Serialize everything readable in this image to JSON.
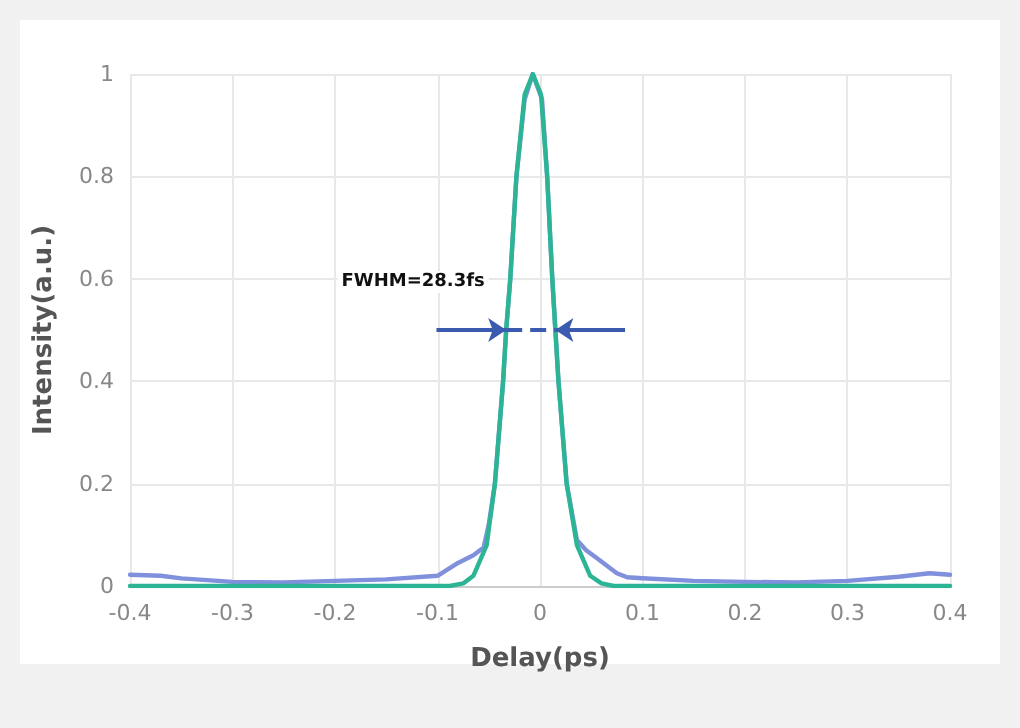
{
  "chart_data": {
    "type": "line",
    "xlabel": "Delay(ps)",
    "ylabel": "Intensity(a.u.)",
    "xlim": [
      -0.4,
      0.4
    ],
    "xticks": [
      -0.4,
      -0.3,
      -0.2,
      -0.1,
      0,
      0.1,
      0.2,
      0.3,
      0.4
    ],
    "ylim": [
      0,
      1
    ],
    "yticks": [
      0,
      0.2,
      0.4,
      0.6,
      0.8,
      1
    ],
    "grid": true,
    "marker": "none",
    "line_style": "solid",
    "annotations": [
      "FWHM=28.3fs"
    ],
    "series": [
      {
        "color": "#8090dc",
        "x": [
          -0.4,
          -0.37,
          -0.35,
          -0.3,
          -0.25,
          -0.2,
          -0.15,
          -0.1,
          -0.08,
          -0.065,
          -0.055,
          -0.05,
          -0.044,
          -0.036,
          -0.033,
          -0.029,
          -0.023,
          -0.015,
          -0.007,
          0.002,
          0.007,
          0.012,
          0.015,
          0.018,
          0.026,
          0.036,
          0.045,
          0.055,
          0.065,
          0.075,
          0.085,
          0.1,
          0.15,
          0.2,
          0.25,
          0.3,
          0.35,
          0.38,
          0.4
        ],
        "values": [
          0.022,
          0.02,
          0.015,
          0.008,
          0.007,
          0.01,
          0.013,
          0.02,
          0.045,
          0.06,
          0.075,
          0.12,
          0.2,
          0.4,
          0.5,
          0.6,
          0.8,
          0.95,
          1,
          0.95,
          0.8,
          0.6,
          0.5,
          0.4,
          0.2,
          0.09,
          0.07,
          0.055,
          0.04,
          0.025,
          0.017,
          0.015,
          0.01,
          0.008,
          0.007,
          0.01,
          0.018,
          0.025,
          0.022
        ]
      },
      {
        "color": "#2bb594",
        "x": [
          -0.4,
          -0.1,
          -0.088,
          -0.075,
          -0.065,
          -0.052,
          -0.044,
          -0.036,
          -0.033,
          -0.029,
          -0.023,
          -0.015,
          -0.007,
          0.001,
          0.007,
          0.012,
          0.015,
          0.018,
          0.026,
          0.036,
          0.049,
          0.06,
          0.072,
          0.1,
          0.4
        ],
        "values": [
          0,
          0,
          0,
          0.005,
          0.02,
          0.08,
          0.2,
          0.4,
          0.5,
          0.6,
          0.8,
          0.96,
          1,
          0.96,
          0.8,
          0.6,
          0.5,
          0.4,
          0.2,
          0.08,
          0.02,
          0.005,
          0,
          0,
          0
        ]
      }
    ]
  }
}
